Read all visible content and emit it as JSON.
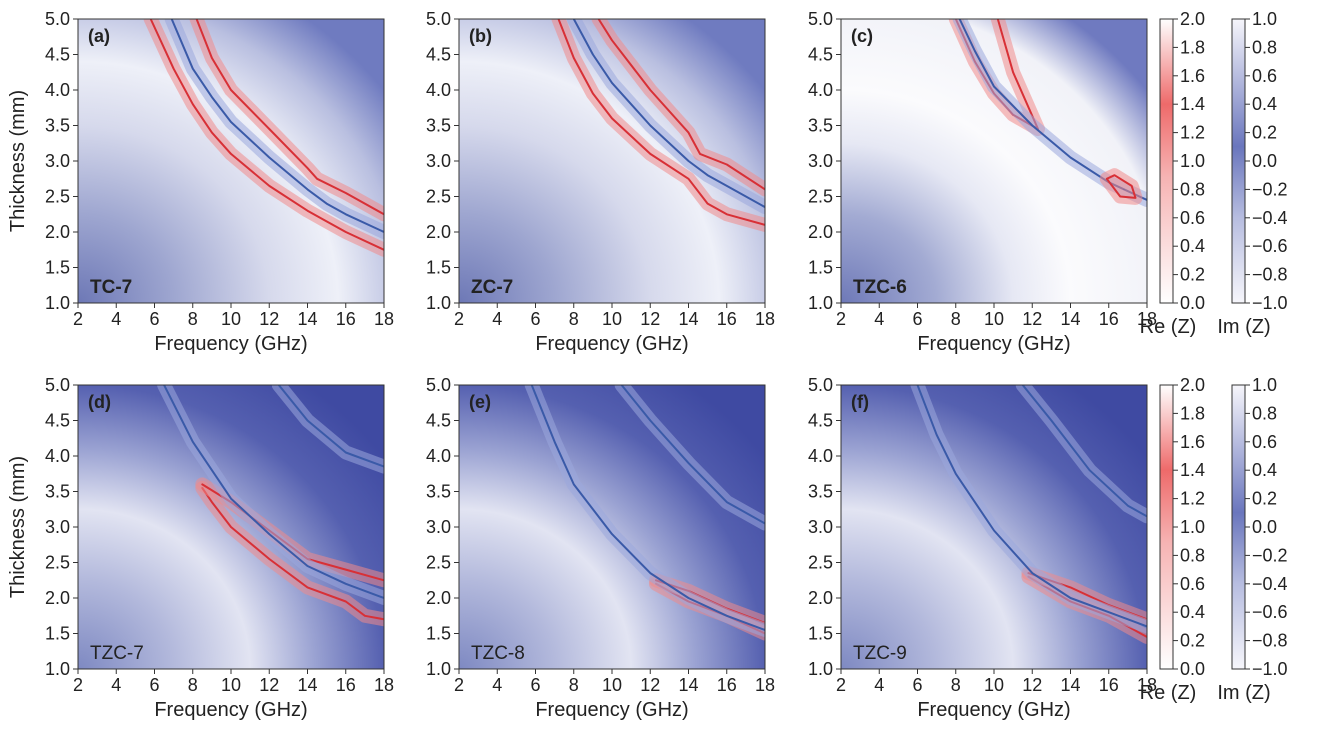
{
  "figure": {
    "colors": {
      "re_low": "#ffffff",
      "re_high": "#e8373a",
      "im_low": "#3a4aa0",
      "im_high": "#f4f4fa",
      "axis": "#333333"
    },
    "colorbars": [
      {
        "name": "Re",
        "label": "Re (Z)",
        "ticks": [
          "2.0",
          "1.8",
          "1.6",
          "1.4",
          "1.2",
          "1.0",
          "0.8",
          "0.6",
          "0.4",
          "0.2",
          "0.0"
        ]
      },
      {
        "name": "Im",
        "label": "Im (Z)",
        "ticks": [
          "1.0",
          "0.8",
          "0.6",
          "0.4",
          "0.2",
          "0.0",
          "−0.2",
          "−0.4",
          "−0.6",
          "−0.8",
          "−1.0"
        ]
      }
    ]
  },
  "chart_data": [
    {
      "type": "heatmap",
      "panel": "(a)",
      "sample": "TC-7",
      "sample_bold": true,
      "xlabel": "Frequency (GHz)",
      "ylabel": "Thickness (mm)",
      "xlim": [
        2,
        18
      ],
      "ylim": [
        1.0,
        5.0
      ],
      "xticks": [
        "2",
        "4",
        "6",
        "8",
        "10",
        "12",
        "14",
        "16",
        "18"
      ],
      "yticks": [
        "1.0",
        "1.5",
        "2.0",
        "2.5",
        "3.0",
        "3.5",
        "4.0",
        "4.5",
        "5.0"
      ],
      "background": "light",
      "contours": [
        {
          "color": "red",
          "points": [
            [
              5.8,
              5.0
            ],
            [
              7,
              4.3
            ],
            [
              8,
              3.8
            ],
            [
              9,
              3.4
            ],
            [
              10,
              3.1
            ],
            [
              12,
              2.65
            ],
            [
              14,
              2.3
            ],
            [
              15,
              2.15
            ],
            [
              16,
              2.0
            ],
            [
              18,
              1.75
            ]
          ]
        },
        {
          "color": "blue",
          "points": [
            [
              6.9,
              5.0
            ],
            [
              8,
              4.3
            ],
            [
              9,
              3.9
            ],
            [
              10,
              3.55
            ],
            [
              12,
              3.05
            ],
            [
              14,
              2.6
            ],
            [
              15,
              2.4
            ],
            [
              16,
              2.25
            ],
            [
              18,
              2.0
            ]
          ]
        },
        {
          "color": "red",
          "points": [
            [
              8.2,
              5.0
            ],
            [
              9,
              4.45
            ],
            [
              10,
              4.0
            ],
            [
              12,
              3.45
            ],
            [
              14,
              2.9
            ],
            [
              14.5,
              2.75
            ],
            [
              16,
              2.55
            ],
            [
              18,
              2.25
            ]
          ]
        }
      ]
    },
    {
      "type": "heatmap",
      "panel": "(b)",
      "sample": "ZC-7",
      "sample_bold": true,
      "xlabel": "Frequency (GHz)",
      "ylabel": "",
      "xlim": [
        2,
        18
      ],
      "ylim": [
        1.0,
        5.0
      ],
      "xticks": [
        "2",
        "4",
        "6",
        "8",
        "10",
        "12",
        "14",
        "16",
        "18"
      ],
      "yticks": [
        "1.0",
        "1.5",
        "2.0",
        "2.5",
        "3.0",
        "3.5",
        "4.0",
        "4.5",
        "5.0"
      ],
      "background": "light",
      "contours": [
        {
          "color": "red",
          "points": [
            [
              7.2,
              5.0
            ],
            [
              8,
              4.45
            ],
            [
              9,
              3.95
            ],
            [
              10,
              3.6
            ],
            [
              12,
              3.1
            ],
            [
              14,
              2.75
            ],
            [
              15,
              2.4
            ],
            [
              16,
              2.25
            ],
            [
              18,
              2.1
            ]
          ]
        },
        {
          "color": "blue",
          "points": [
            [
              8.0,
              5.0
            ],
            [
              9,
              4.5
            ],
            [
              10,
              4.1
            ],
            [
              12,
              3.5
            ],
            [
              14,
              3.0
            ],
            [
              15,
              2.8
            ],
            [
              16,
              2.65
            ],
            [
              18,
              2.35
            ]
          ]
        },
        {
          "color": "red",
          "points": [
            [
              9.3,
              5.0
            ],
            [
              10,
              4.7
            ],
            [
              12,
              4.0
            ],
            [
              14,
              3.4
            ],
            [
              14.6,
              3.1
            ],
            [
              16,
              2.95
            ],
            [
              18,
              2.6
            ]
          ]
        }
      ]
    },
    {
      "type": "heatmap",
      "panel": "(c)",
      "sample": "TZC-6",
      "sample_bold": true,
      "xlabel": "Frequency (GHz)",
      "ylabel": "",
      "xlim": [
        2,
        18
      ],
      "ylim": [
        1.0,
        5.0
      ],
      "xticks": [
        "2",
        "4",
        "6",
        "8",
        "10",
        "12",
        "14",
        "16",
        "18"
      ],
      "yticks": [
        "1.0",
        "1.5",
        "2.0",
        "2.5",
        "3.0",
        "3.5",
        "4.0",
        "4.5",
        "5.0"
      ],
      "background": "white",
      "contours": [
        {
          "color": "red",
          "points": [
            [
              8.0,
              5.0
            ],
            [
              9,
              4.4
            ],
            [
              10,
              3.95
            ],
            [
              11,
              3.65
            ],
            [
              12.3,
              3.45
            ],
            [
              11,
              4.25
            ],
            [
              10.2,
              5.0
            ]
          ]
        },
        {
          "color": "blue",
          "points": [
            [
              8.2,
              5.0
            ],
            [
              9,
              4.55
            ],
            [
              10,
              4.05
            ],
            [
              12,
              3.5
            ],
            [
              14,
              3.05
            ],
            [
              16,
              2.7
            ],
            [
              18,
              2.45
            ]
          ]
        },
        {
          "color": "red",
          "points": [
            [
              15.9,
              2.75
            ],
            [
              16.6,
              2.5
            ],
            [
              17.4,
              2.48
            ],
            [
              17.2,
              2.65
            ],
            [
              16.3,
              2.8
            ],
            [
              15.9,
              2.75
            ]
          ]
        }
      ]
    },
    {
      "type": "heatmap",
      "panel": "(d)",
      "sample": "TZC-7",
      "sample_bold": false,
      "xlabel": "Frequency (GHz)",
      "ylabel": "Thickness (mm)",
      "xlim": [
        2,
        18
      ],
      "ylim": [
        1.0,
        5.0
      ],
      "xticks": [
        "2",
        "4",
        "6",
        "8",
        "10",
        "12",
        "14",
        "16",
        "18"
      ],
      "yticks": [
        "1.0",
        "1.5",
        "2.0",
        "2.5",
        "3.0",
        "3.5",
        "4.0",
        "4.5",
        "5.0"
      ],
      "background": "dark",
      "contours": [
        {
          "color": "red",
          "points": [
            [
              8.5,
              3.55
            ],
            [
              9,
              3.35
            ],
            [
              10,
              3.0
            ],
            [
              12,
              2.55
            ],
            [
              14,
              2.15
            ],
            [
              16,
              1.95
            ],
            [
              17,
              1.75
            ],
            [
              18,
              1.7
            ]
          ]
        },
        {
          "color": "red",
          "points": [
            [
              8.5,
              3.6
            ],
            [
              10,
              3.35
            ],
            [
              12,
              2.95
            ],
            [
              14,
              2.55
            ],
            [
              16,
              2.4
            ],
            [
              18,
              2.25
            ]
          ]
        },
        {
          "color": "blue",
          "points": [
            [
              6.5,
              5.0
            ],
            [
              8,
              4.2
            ],
            [
              10,
              3.4
            ],
            [
              12,
              2.9
            ],
            [
              14,
              2.45
            ],
            [
              16,
              2.2
            ],
            [
              18,
              2.0
            ]
          ]
        },
        {
          "color": "blue",
          "points": [
            [
              12.5,
              5.0
            ],
            [
              14,
              4.5
            ],
            [
              16,
              4.05
            ],
            [
              18,
              3.85
            ]
          ]
        }
      ]
    },
    {
      "type": "heatmap",
      "panel": "(e)",
      "sample": "TZC-8",
      "sample_bold": false,
      "xlabel": "Frequency (GHz)",
      "ylabel": "",
      "xlim": [
        2,
        18
      ],
      "ylim": [
        1.0,
        5.0
      ],
      "xticks": [
        "2",
        "4",
        "6",
        "8",
        "10",
        "12",
        "14",
        "16",
        "18"
      ],
      "yticks": [
        "1.0",
        "1.5",
        "2.0",
        "2.5",
        "3.0",
        "3.5",
        "4.0",
        "4.5",
        "5.0"
      ],
      "background": "dark",
      "contours": [
        {
          "color": "red",
          "points": [
            [
              12.3,
              2.2
            ],
            [
              14,
              1.95
            ],
            [
              16,
              1.75
            ],
            [
              18,
              1.5
            ]
          ]
        },
        {
          "color": "red",
          "points": [
            [
              12.3,
              2.25
            ],
            [
              14,
              2.1
            ],
            [
              16,
              1.85
            ],
            [
              18,
              1.65
            ]
          ]
        },
        {
          "color": "blue",
          "points": [
            [
              5.8,
              5.0
            ],
            [
              7,
              4.2
            ],
            [
              8,
              3.6
            ],
            [
              10,
              2.9
            ],
            [
              12,
              2.35
            ],
            [
              14,
              2.0
            ],
            [
              16,
              1.75
            ],
            [
              18,
              1.55
            ]
          ]
        },
        {
          "color": "blue",
          "points": [
            [
              10.5,
              5.0
            ],
            [
              12,
              4.5
            ],
            [
              14,
              3.9
            ],
            [
              16,
              3.35
            ],
            [
              18,
              3.05
            ]
          ]
        }
      ]
    },
    {
      "type": "heatmap",
      "panel": "(f)",
      "sample": "TZC-9",
      "sample_bold": false,
      "xlabel": "Frequency (GHz)",
      "ylabel": "",
      "xlim": [
        2,
        18
      ],
      "ylim": [
        1.0,
        5.0
      ],
      "xticks": [
        "2",
        "4",
        "6",
        "8",
        "10",
        "12",
        "14",
        "16",
        "18"
      ],
      "yticks": [
        "1.0",
        "1.5",
        "2.0",
        "2.5",
        "3.0",
        "3.5",
        "4.0",
        "4.5",
        "5.0"
      ],
      "background": "dark",
      "contours": [
        {
          "color": "red",
          "points": [
            [
              11.8,
              2.3
            ],
            [
              14,
              1.95
            ],
            [
              16,
              1.75
            ],
            [
              18,
              1.45
            ]
          ]
        },
        {
          "color": "red",
          "points": [
            [
              11.8,
              2.35
            ],
            [
              14,
              2.15
            ],
            [
              16,
              1.9
            ],
            [
              18,
              1.7
            ]
          ]
        },
        {
          "color": "blue",
          "points": [
            [
              6.0,
              5.0
            ],
            [
              7,
              4.3
            ],
            [
              8,
              3.75
            ],
            [
              10,
              2.95
            ],
            [
              12,
              2.35
            ],
            [
              14,
              2.0
            ],
            [
              16,
              1.8
            ],
            [
              18,
              1.6
            ]
          ]
        },
        {
          "color": "blue",
          "points": [
            [
              11.5,
              5.0
            ],
            [
              13,
              4.5
            ],
            [
              15,
              3.8
            ],
            [
              17,
              3.3
            ],
            [
              18,
              3.15
            ]
          ]
        }
      ]
    }
  ]
}
